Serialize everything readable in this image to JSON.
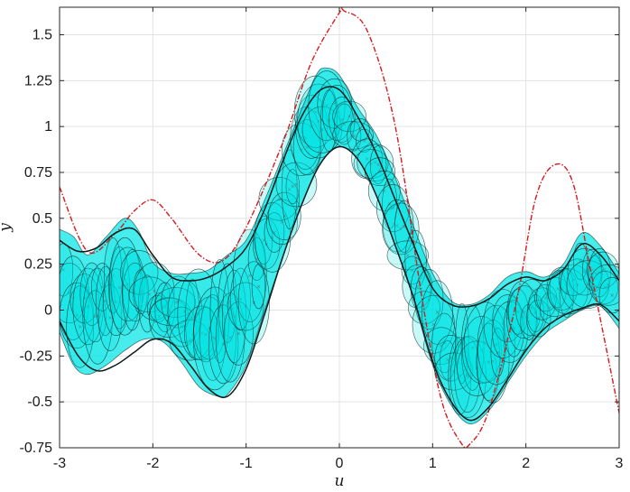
{
  "chart_data": {
    "type": "line",
    "title": "",
    "xlabel": "u",
    "ylabel": "y",
    "xlim": [
      -3,
      3
    ],
    "ylim": [
      -0.75,
      1.65
    ],
    "grid": true,
    "x_ticks": [
      "-3",
      "-2",
      "-1",
      "0",
      "1",
      "2",
      "3"
    ],
    "y_ticks": [
      "-0.75",
      "-0.5",
      "-0.25",
      "0",
      "0.25",
      "0.5",
      "0.75",
      "1",
      "1.25",
      "1.5"
    ],
    "x_tick_values": [
      -3,
      -2,
      -1,
      0,
      1,
      2,
      3
    ],
    "y_tick_values": [
      -0.75,
      -0.5,
      -0.25,
      0,
      0.25,
      0.5,
      0.75,
      1,
      1.25,
      1.5
    ],
    "colors": {
      "band_fill": "#00e5e5",
      "ellipse_stroke": "#0a1a1a",
      "dashed_envelope": "#d7191c",
      "axis": "#262626",
      "grid": "#e3e3e3"
    },
    "series": [
      {
        "style": "dash-dot-red",
        "x": [
          -3.0,
          -2.7,
          -2.4,
          -2.2,
          -2.0,
          -1.8,
          -1.5,
          -1.25,
          -1.0,
          -0.6,
          -0.3,
          0.0,
          0.05,
          0.3,
          0.6,
          0.9,
          1.1,
          1.3,
          1.4,
          1.6,
          1.9,
          2.1,
          2.3,
          2.5,
          2.7,
          3.0
        ],
        "values": [
          0.67,
          0.32,
          0.42,
          0.54,
          0.6,
          0.5,
          0.3,
          0.27,
          0.45,
          0.92,
          1.35,
          1.62,
          1.63,
          1.52,
          1.0,
          0.02,
          -0.5,
          -0.72,
          -0.73,
          -0.55,
          0.05,
          0.6,
          0.79,
          0.7,
          0.2,
          -0.56
        ]
      },
      {
        "style": "band-upper",
        "x": [
          -3.0,
          -2.85,
          -2.7,
          -2.5,
          -2.3,
          -2.15,
          -2.0,
          -1.8,
          -1.6,
          -1.4,
          -1.2,
          -1.0,
          -0.8,
          -0.6,
          -0.4,
          -0.25,
          -0.15,
          0.0,
          0.2,
          0.4,
          0.6,
          0.8,
          1.0,
          1.2,
          1.4,
          1.6,
          1.8,
          2.0,
          2.2,
          2.4,
          2.6,
          2.8,
          3.0
        ],
        "values": [
          0.44,
          0.4,
          0.3,
          0.4,
          0.5,
          0.43,
          0.26,
          0.2,
          0.2,
          0.22,
          0.3,
          0.38,
          0.6,
          0.85,
          1.1,
          1.28,
          1.32,
          1.28,
          1.1,
          0.95,
          0.72,
          0.45,
          0.2,
          0.05,
          0.03,
          0.08,
          0.18,
          0.21,
          0.18,
          0.25,
          0.42,
          0.35,
          0.2
        ]
      },
      {
        "style": "band-lower",
        "x": [
          -3.0,
          -2.85,
          -2.7,
          -2.5,
          -2.3,
          -2.1,
          -1.9,
          -1.7,
          -1.5,
          -1.3,
          -1.2,
          -1.0,
          -0.8,
          -0.6,
          -0.4,
          -0.2,
          0.0,
          0.2,
          0.4,
          0.6,
          0.8,
          1.0,
          1.2,
          1.4,
          1.6,
          1.8,
          2.0,
          2.2,
          2.4,
          2.6,
          2.8,
          3.0
        ],
        "values": [
          -0.12,
          -0.3,
          -0.35,
          -0.3,
          -0.22,
          -0.16,
          -0.17,
          -0.28,
          -0.42,
          -0.47,
          -0.46,
          -0.3,
          0.0,
          0.3,
          0.58,
          0.8,
          0.89,
          0.82,
          0.62,
          0.35,
          0.05,
          -0.3,
          -0.52,
          -0.62,
          -0.55,
          -0.4,
          -0.25,
          -0.13,
          -0.06,
          0.0,
          0.02,
          -0.1
        ]
      },
      {
        "style": "solid-black-lower",
        "x": [
          -3.0,
          -2.8,
          -2.6,
          -2.4,
          -2.2,
          -2.0,
          -1.8,
          -1.6,
          -1.4,
          -1.2,
          -1.0,
          -0.8,
          -0.6,
          -0.4,
          -0.2,
          0.0,
          0.2,
          0.4,
          0.6,
          0.8,
          1.0,
          1.2,
          1.4,
          1.6,
          1.8,
          2.0,
          2.2,
          2.4,
          2.6,
          2.8,
          3.0
        ],
        "values": [
          -0.06,
          -0.25,
          -0.33,
          -0.3,
          -0.23,
          -0.16,
          -0.18,
          -0.3,
          -0.43,
          -0.47,
          -0.32,
          -0.02,
          0.3,
          0.58,
          0.8,
          0.89,
          0.82,
          0.62,
          0.35,
          0.06,
          -0.28,
          -0.5,
          -0.6,
          -0.53,
          -0.38,
          -0.22,
          -0.1,
          -0.03,
          0.01,
          0.03,
          -0.06
        ]
      },
      {
        "style": "solid-black-upper",
        "x": [
          -3.0,
          -2.8,
          -2.6,
          -2.4,
          -2.2,
          -2.0,
          -1.8,
          -1.6,
          -1.4,
          -1.2,
          -1.0,
          -0.8,
          -0.6,
          -0.4,
          -0.2,
          0.0,
          0.2,
          0.4,
          0.6,
          0.8,
          1.0,
          1.2,
          1.4,
          1.6,
          1.8,
          2.0,
          2.2,
          2.4,
          2.6,
          2.8,
          3.0
        ],
        "values": [
          0.38,
          0.32,
          0.34,
          0.42,
          0.44,
          0.3,
          0.18,
          0.16,
          0.18,
          0.24,
          0.34,
          0.55,
          0.82,
          1.06,
          1.2,
          1.2,
          1.05,
          0.85,
          0.6,
          0.35,
          0.12,
          0.03,
          0.02,
          0.06,
          0.14,
          0.18,
          0.16,
          0.22,
          0.36,
          0.3,
          0.16
        ]
      }
    ]
  }
}
